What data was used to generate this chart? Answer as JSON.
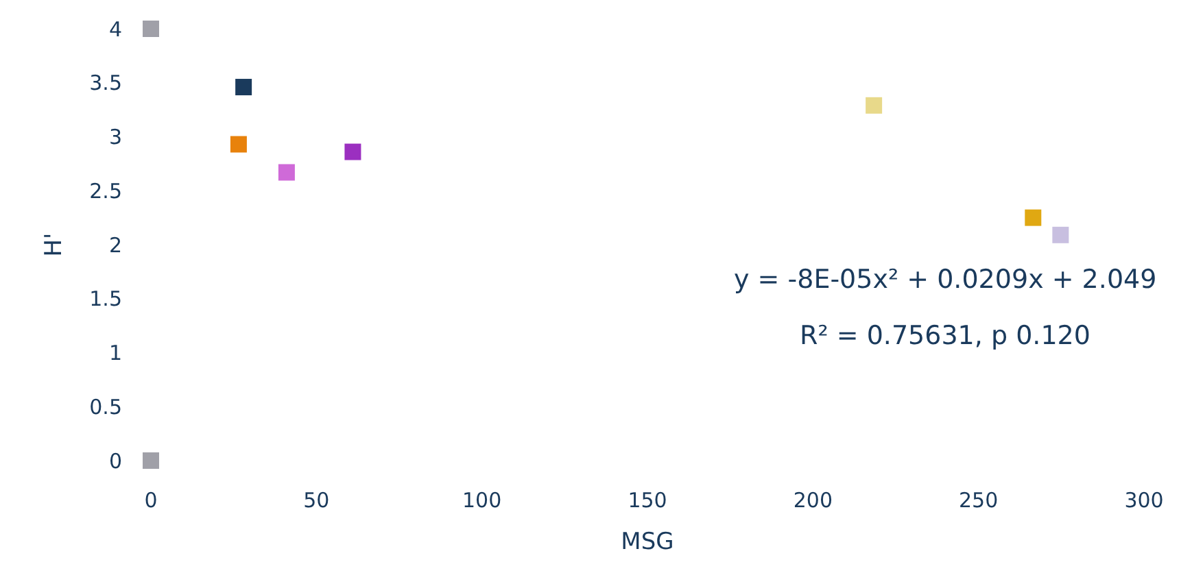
{
  "chart_data": {
    "type": "scatter",
    "xlabel": "MSG",
    "ylabel": "H'",
    "xlim": [
      0,
      300
    ],
    "xticks": [
      0,
      50,
      100,
      150,
      200,
      250,
      300
    ],
    "ylim": [
      0,
      4
    ],
    "yticks": [
      0,
      0.5,
      1,
      1.5,
      2,
      2.5,
      3,
      3.5,
      4
    ],
    "marker": "square",
    "series": [
      {
        "x": [
          26.5,
          41,
          61,
          218.4,
          266.5,
          274.8,
          0,
          28,
          0
        ],
        "values": [
          2.93,
          2.67,
          2.86,
          3.29,
          2.25,
          2.09,
          4,
          3.46,
          0
        ],
        "colors": [
          "#e8820c",
          "#cf6ad8",
          "#9b2fc0",
          "#e8d98a",
          "#e0a812",
          "#c8bfe0",
          "#a0a0a8",
          "#1a3a5c",
          "#a0a0a8"
        ]
      }
    ],
    "annotations": [
      "y = -8E-05x² + 0.0209x + 2.049",
      "R² = 0.75631, p 0.120"
    ]
  }
}
